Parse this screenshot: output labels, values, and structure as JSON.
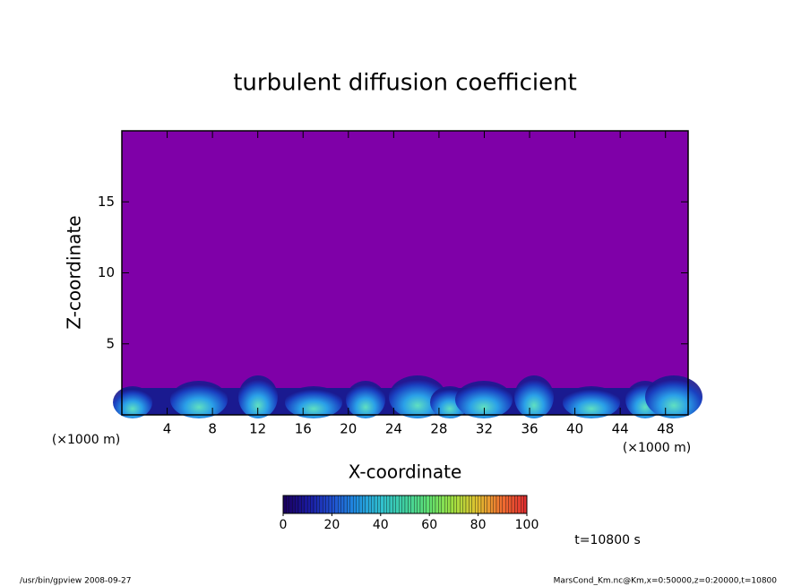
{
  "chart_data": {
    "type": "contour",
    "title": "turbulent diffusion coefficient",
    "x_label": "X-coordinate",
    "y_label": "Z-coordinate",
    "x_unit": "(×1000 m)",
    "xlim": [
      0,
      50
    ],
    "xticks": [
      4,
      8,
      12,
      16,
      20,
      24,
      28,
      32,
      36,
      40,
      44,
      48
    ],
    "ylim": [
      0,
      20
    ],
    "yticks": [
      5,
      10,
      15
    ],
    "background_color": "#7f00a8",
    "colorbar": {
      "lim": [
        0,
        100
      ],
      "ticks": [
        0,
        20,
        40,
        60,
        80,
        100
      ],
      "colors": [
        "#1a0060",
        "#1a1aa0",
        "#2050d0",
        "#2090e0",
        "#30c0d0",
        "#40d0a0",
        "#60e070",
        "#a0e040",
        "#e0c030",
        "#f07030",
        "#e03030"
      ]
    },
    "time_label": "t=10800 s",
    "footer_left": "/usr/bin/gpview   2008-09-27",
    "footer_right": "MarsCond_Km.nc@Km,x=0:50000,z=0:20000,t=10800"
  }
}
